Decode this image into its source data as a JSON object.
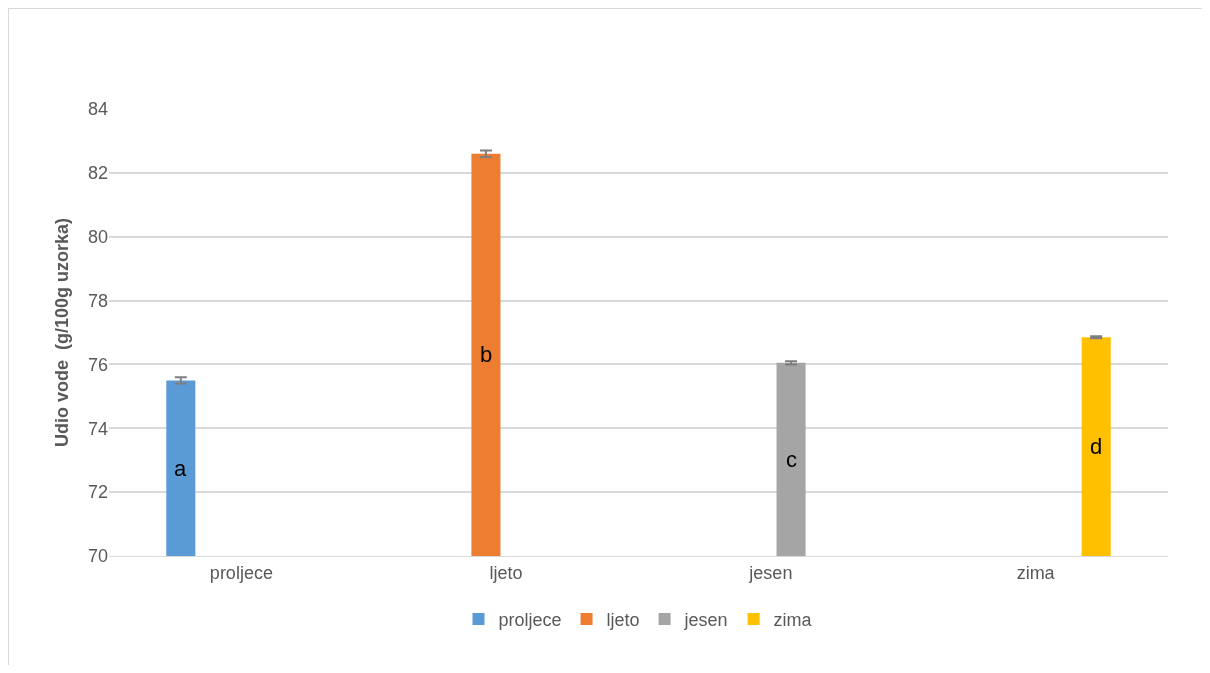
{
  "chart_data": {
    "type": "bar",
    "ylabel": "Udio vode  (g/100g uzorka)",
    "categories": [
      "proljece",
      "ljeto",
      "jesen",
      "zima"
    ],
    "series": [
      {
        "name": "proljece",
        "color": "#5b9bd5",
        "values": [
          75.5,
          null,
          null,
          null
        ],
        "errors": [
          0.1,
          null,
          null,
          null
        ]
      },
      {
        "name": "ljeto",
        "color": "#ed7d31",
        "values": [
          null,
          82.6,
          null,
          null
        ],
        "errors": [
          null,
          0.1,
          null,
          null
        ]
      },
      {
        "name": "jesen",
        "color": "#a5a5a5",
        "values": [
          null,
          null,
          76.05,
          null
        ],
        "errors": [
          null,
          null,
          0.05,
          null
        ]
      },
      {
        "name": "zima",
        "color": "#ffc000",
        "values": [
          null,
          null,
          null,
          76.85
        ],
        "errors": [
          null,
          null,
          null,
          0.03
        ]
      }
    ],
    "annotations": [
      "a",
      "b",
      "c",
      "d"
    ],
    "ylim": [
      70,
      84
    ],
    "yticks": [
      70,
      72,
      74,
      76,
      78,
      80,
      82,
      84
    ],
    "grid": "y",
    "legend": "bottom"
  }
}
